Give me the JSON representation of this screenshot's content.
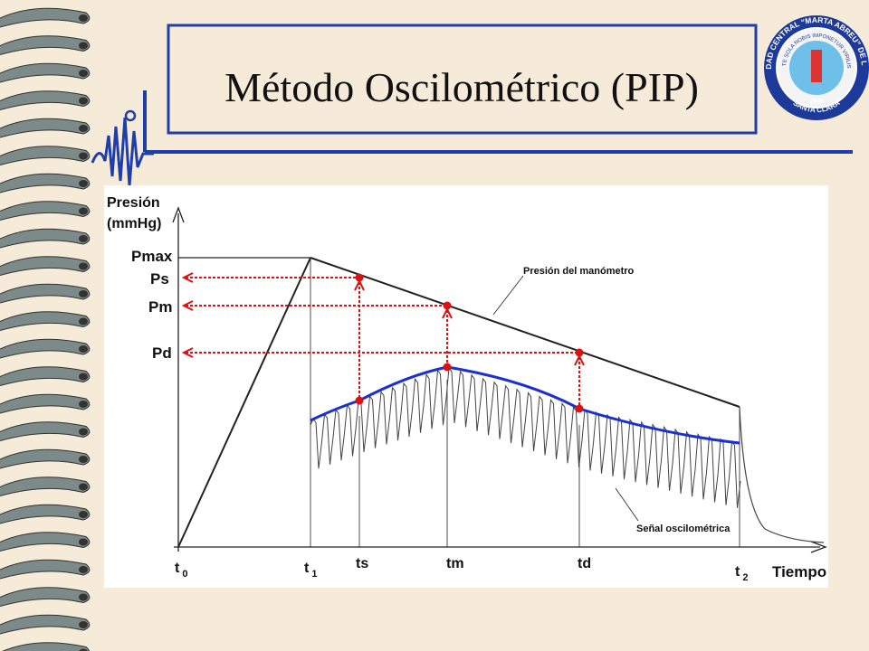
{
  "title": "Método Oscilométrico (PIP)",
  "logo": {
    "outer": "UNIVERSIDAD CENTRAL “MARTA ABREU” DE LAS VILLAS",
    "inner": "VERITATE SOLA NOBIS IMPONETUR VIRILIS TOGA",
    "year": "1948",
    "city": "SANTA CLARA"
  },
  "diagram": {
    "y_axis_label": [
      "Presión",
      "(mmHg)"
    ],
    "y_labels": [
      "Pmax",
      "Ps",
      "Pm",
      "Pd"
    ],
    "x_labels": [
      {
        "base": "t",
        "sub": "0"
      },
      {
        "base": "t",
        "sub": "1"
      },
      {
        "base": "ts"
      },
      {
        "base": "tm"
      },
      {
        "base": "td"
      },
      {
        "base": "t",
        "sub": "2"
      },
      {
        "base": "Tiempo"
      }
    ],
    "annotations": [
      "Presión del manómetro",
      "Señal oscilométrica"
    ]
  }
}
